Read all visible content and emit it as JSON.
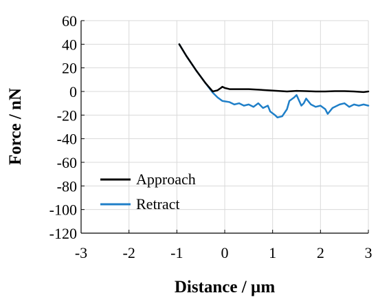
{
  "chart_data": {
    "type": "line",
    "title": "",
    "xlabel": "Distance / µm",
    "ylabel": "Force / nN",
    "xlim": [
      -3,
      3
    ],
    "ylim": [
      -120,
      60
    ],
    "xticks": [
      -3,
      -2,
      -1,
      0,
      1,
      2,
      3
    ],
    "yticks": [
      60,
      40,
      20,
      0,
      -20,
      -40,
      -60,
      -80,
      -100,
      -120
    ],
    "grid": true,
    "legend_position": "bottom-left",
    "series": [
      {
        "name": "Approach",
        "color": "#000000",
        "x": [
          -0.95,
          -0.8,
          -0.6,
          -0.4,
          -0.25,
          -0.15,
          -0.08,
          -0.05,
          0.0,
          0.1,
          0.3,
          0.5,
          0.7,
          0.9,
          1.1,
          1.3,
          1.5,
          1.7,
          1.9,
          2.1,
          2.3,
          2.5,
          2.7,
          2.9,
          3.0
        ],
        "y": [
          40,
          30,
          18,
          7,
          0,
          1,
          3,
          4,
          3,
          2,
          2,
          2,
          1.5,
          1,
          0.5,
          0,
          0.5,
          0.3,
          0,
          0,
          0.3,
          0.3,
          0,
          -0.5,
          0
        ]
      },
      {
        "name": "Retract",
        "color": "#1f7fc8",
        "x": [
          -0.95,
          -0.8,
          -0.6,
          -0.4,
          -0.25,
          -0.15,
          -0.05,
          0.1,
          0.2,
          0.3,
          0.4,
          0.5,
          0.6,
          0.7,
          0.8,
          0.9,
          0.95,
          1.05,
          1.1,
          1.2,
          1.3,
          1.35,
          1.45,
          1.5,
          1.6,
          1.65,
          1.7,
          1.8,
          1.9,
          2.0,
          2.1,
          2.15,
          2.25,
          2.4,
          2.5,
          2.6,
          2.7,
          2.8,
          2.9,
          3.0
        ],
        "y": [
          40,
          30,
          18,
          7,
          -1,
          -5,
          -8,
          -9,
          -11,
          -10,
          -12,
          -11,
          -13,
          -10,
          -14,
          -12,
          -17,
          -20,
          -22,
          -21,
          -15,
          -8,
          -5,
          -3,
          -12,
          -10,
          -6,
          -11,
          -13,
          -12,
          -15,
          -19,
          -14,
          -11,
          -10,
          -13,
          -11,
          -12,
          -11,
          -12
        ]
      }
    ]
  }
}
